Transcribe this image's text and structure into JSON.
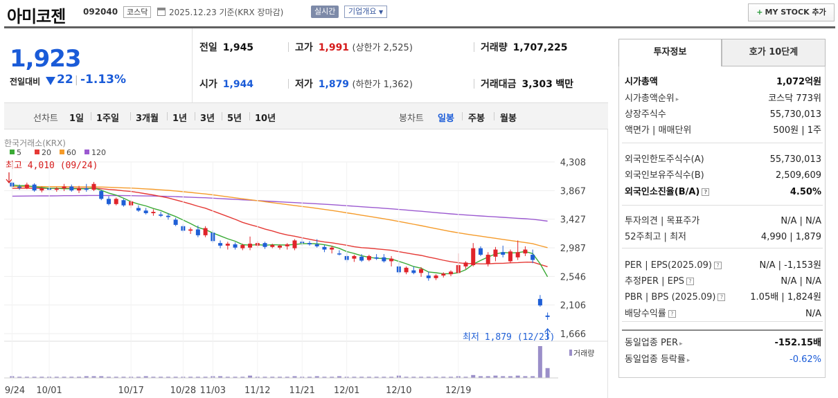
{
  "header": {
    "title": "아미코젠",
    "code": "092040",
    "market": "코스닥",
    "date": "2025.12.23 기준(KRX 장마감)",
    "realtime": "실시간",
    "company_info": "기업개요",
    "mystock": "MY STOCK 추가",
    "mystock_plus": "+"
  },
  "price": {
    "current": "1,923",
    "change_label": "전일대비",
    "change": "22",
    "change_pct": "-1.13%"
  },
  "info": {
    "prev_label": "전일",
    "prev": "1,945",
    "high_label": "고가",
    "high": "1,991",
    "upper_limit": "(상한가 2,525)",
    "volume_label": "거래량",
    "volume": "1,707,225",
    "open_label": "시가",
    "open": "1,944",
    "low_label": "저가",
    "low": "1,879",
    "lower_limit": "(하한가 1,362)",
    "amount_label": "거래대금",
    "amount": "3,303",
    "amount_unit": "백만"
  },
  "period_bar": {
    "line_label": "선차트",
    "line_items": [
      "1일",
      "1주일",
      "3개월",
      "1년",
      "3년",
      "5년",
      "10년"
    ],
    "candle_label": "봉차트",
    "candle_items": [
      "일봉",
      "주봉",
      "월봉"
    ],
    "active_candle": "일봉"
  },
  "chart_data": {
    "type": "candlestick",
    "source": "한국거래소(KRX)",
    "legend": [
      {
        "name": "5",
        "color": "#3aaa35"
      },
      {
        "name": "20",
        "color": "#e53935"
      },
      {
        "name": "60",
        "color": "#f59b2a"
      },
      {
        "name": "120",
        "color": "#9b59d0"
      }
    ],
    "y_ticks": [
      "4,308",
      "3,867",
      "3,427",
      "2,987",
      "2,546",
      "2,106",
      "1,666"
    ],
    "ylim": [
      1666,
      4308
    ],
    "x_ticks": [
      "09/24",
      "10/01",
      "10/17",
      "10/28",
      "11/03",
      "11/12",
      "11/21",
      "12/01",
      "12/10",
      "12/19"
    ],
    "max_label": "최고 4,010 (09/24)",
    "min_label": "최저 1,879 (12/23)",
    "volume_label": "거래량",
    "candles": [
      [
        3990,
        4010,
        3900,
        3930
      ],
      [
        3930,
        3960,
        3880,
        3910
      ],
      [
        3910,
        3990,
        3890,
        3960
      ],
      [
        3960,
        3980,
        3850,
        3870
      ],
      [
        3870,
        3930,
        3840,
        3900
      ],
      [
        3900,
        3950,
        3860,
        3880
      ],
      [
        3880,
        3920,
        3850,
        3900
      ],
      [
        3900,
        3970,
        3860,
        3930
      ],
      [
        3930,
        3960,
        3850,
        3870
      ],
      [
        3870,
        3940,
        3830,
        3900
      ],
      [
        3900,
        3970,
        3850,
        3880
      ],
      [
        3880,
        4000,
        3860,
        3970
      ],
      [
        3860,
        3880,
        3720,
        3740
      ],
      [
        3740,
        3780,
        3640,
        3660
      ],
      [
        3660,
        3760,
        3640,
        3740
      ],
      [
        3720,
        3740,
        3620,
        3640
      ],
      [
        3640,
        3720,
        3600,
        3700
      ],
      [
        3600,
        3640,
        3540,
        3560
      ],
      [
        3560,
        3600,
        3500,
        3520
      ],
      [
        3520,
        3580,
        3480,
        3540
      ],
      [
        3500,
        3540,
        3460,
        3480
      ],
      [
        3480,
        3520,
        3420,
        3460
      ],
      [
        3420,
        3450,
        3320,
        3340
      ],
      [
        3320,
        3350,
        3220,
        3250
      ],
      [
        3250,
        3300,
        3200,
        3270
      ],
      [
        3270,
        3330,
        3150,
        3180
      ],
      [
        3180,
        3320,
        3150,
        3290
      ],
      [
        3220,
        3260,
        3060,
        3090
      ],
      [
        3060,
        3100,
        2980,
        3020
      ],
      [
        3020,
        3080,
        2960,
        3050
      ],
      [
        3040,
        3070,
        2960,
        2990
      ],
      [
        2980,
        3050,
        2950,
        3030
      ],
      [
        2990,
        3160,
        2950,
        3050
      ],
      [
        3020,
        3090,
        2990,
        3060
      ],
      [
        3060,
        3080,
        2970,
        3000
      ],
      [
        3000,
        3050,
        2980,
        3030
      ],
      [
        2990,
        3040,
        2960,
        3020
      ],
      [
        3010,
        3060,
        2960,
        3040
      ],
      [
        2980,
        3120,
        2950,
        3100
      ],
      [
        3080,
        3140,
        3020,
        3060
      ],
      [
        3060,
        3090,
        3020,
        3040
      ],
      [
        3040,
        3120,
        2990,
        3010
      ],
      [
        3000,
        3030,
        2920,
        2960
      ],
      [
        2960,
        3020,
        2900,
        2990
      ],
      [
        2900,
        2950,
        2870,
        2890
      ],
      [
        2860,
        2920,
        2760,
        2800
      ],
      [
        2820,
        2880,
        2770,
        2860
      ],
      [
        2850,
        2890,
        2770,
        2790
      ],
      [
        2800,
        2880,
        2780,
        2860
      ],
      [
        2840,
        2890,
        2800,
        2820
      ],
      [
        2840,
        2890,
        2760,
        2780
      ],
      [
        2780,
        2860,
        2700,
        2820
      ],
      [
        2700,
        2760,
        2580,
        2610
      ],
      [
        2610,
        2700,
        2580,
        2680
      ],
      [
        2640,
        2700,
        2580,
        2600
      ],
      [
        2600,
        2690,
        2540,
        2660
      ],
      [
        2560,
        2620,
        2480,
        2520
      ],
      [
        2520,
        2580,
        2490,
        2560
      ],
      [
        2560,
        2610,
        2530,
        2590
      ],
      [
        2580,
        2640,
        2550,
        2620
      ],
      [
        2600,
        2900,
        2590,
        2720
      ],
      [
        2700,
        2780,
        2660,
        2760
      ],
      [
        2720,
        3060,
        2700,
        2980
      ],
      [
        2980,
        3010,
        2860,
        2880
      ],
      [
        2740,
        2920,
        2700,
        2880
      ],
      [
        2850,
        3000,
        2780,
        2960
      ],
      [
        2920,
        3020,
        2840,
        2880
      ],
      [
        2780,
        2960,
        2750,
        2930
      ],
      [
        2840,
        3100,
        2800,
        2920
      ],
      [
        2900,
        3010,
        2860,
        2960
      ],
      [
        2880,
        2960,
        2750,
        2800
      ],
      [
        2200,
        2260,
        2080,
        2100
      ],
      [
        1944,
        1991,
        1879,
        1923
      ]
    ],
    "volumes": [
      3,
      2,
      2,
      2,
      2,
      2,
      2,
      2,
      2,
      2,
      3,
      3,
      3,
      2,
      2,
      2,
      2,
      2,
      3,
      2,
      2,
      2,
      2,
      2,
      2,
      2,
      2,
      3,
      3,
      2,
      2,
      2,
      4,
      2,
      2,
      2,
      2,
      2,
      3,
      2,
      2,
      3,
      2,
      2,
      3,
      2,
      2,
      2,
      2,
      2,
      2,
      2,
      4,
      2,
      2,
      2,
      2,
      2,
      2,
      2,
      3,
      2,
      5,
      3,
      3,
      4,
      3,
      3,
      4,
      3,
      3,
      55,
      17
    ]
  },
  "side": {
    "tab_active": "투자정보",
    "tab_other": "호가 10단계",
    "rows": [
      {
        "k": "시가총액",
        "v": "1,072억원",
        "kb": true,
        "vb": true
      },
      {
        "k": "시가총액순위",
        "v": "코스닥 773위",
        "arrow": true
      },
      {
        "k": "상장주식수",
        "v": "55,730,013"
      },
      {
        "k": "액면가 | 매매단위",
        "v": "500원 | 1주"
      },
      {
        "k": "외국인한도주식수(A)",
        "v": "55,730,013"
      },
      {
        "k": "외국인보유주식수(B)",
        "v": "2,509,609"
      },
      {
        "k": "외국인소진율(B/A)",
        "v": "4.50%",
        "kb": true,
        "vb": true,
        "q": true
      },
      {
        "k": "투자의견 | 목표주가",
        "v": "N/A | N/A"
      },
      {
        "k": "52주최고 | 최저",
        "v": "4,990 | 1,879"
      },
      {
        "k": "PER | EPS(2025.09)",
        "v": "N/A | -1,153원",
        "q": true
      },
      {
        "k": "추정PER | EPS",
        "v": "N/A | N/A",
        "q": true
      },
      {
        "k": "PBR | BPS (2025.09)",
        "v": "1.05배 | 1,824원",
        "q": true
      },
      {
        "k": "배당수익률",
        "v": "N/A",
        "q": true
      },
      {
        "k": "동일업종 PER",
        "v": "-152.15배",
        "vb": true,
        "arrow": true
      },
      {
        "k": "동일업종 등락률",
        "v": "-0.62%",
        "vblue": true,
        "arrow": true
      }
    ]
  }
}
